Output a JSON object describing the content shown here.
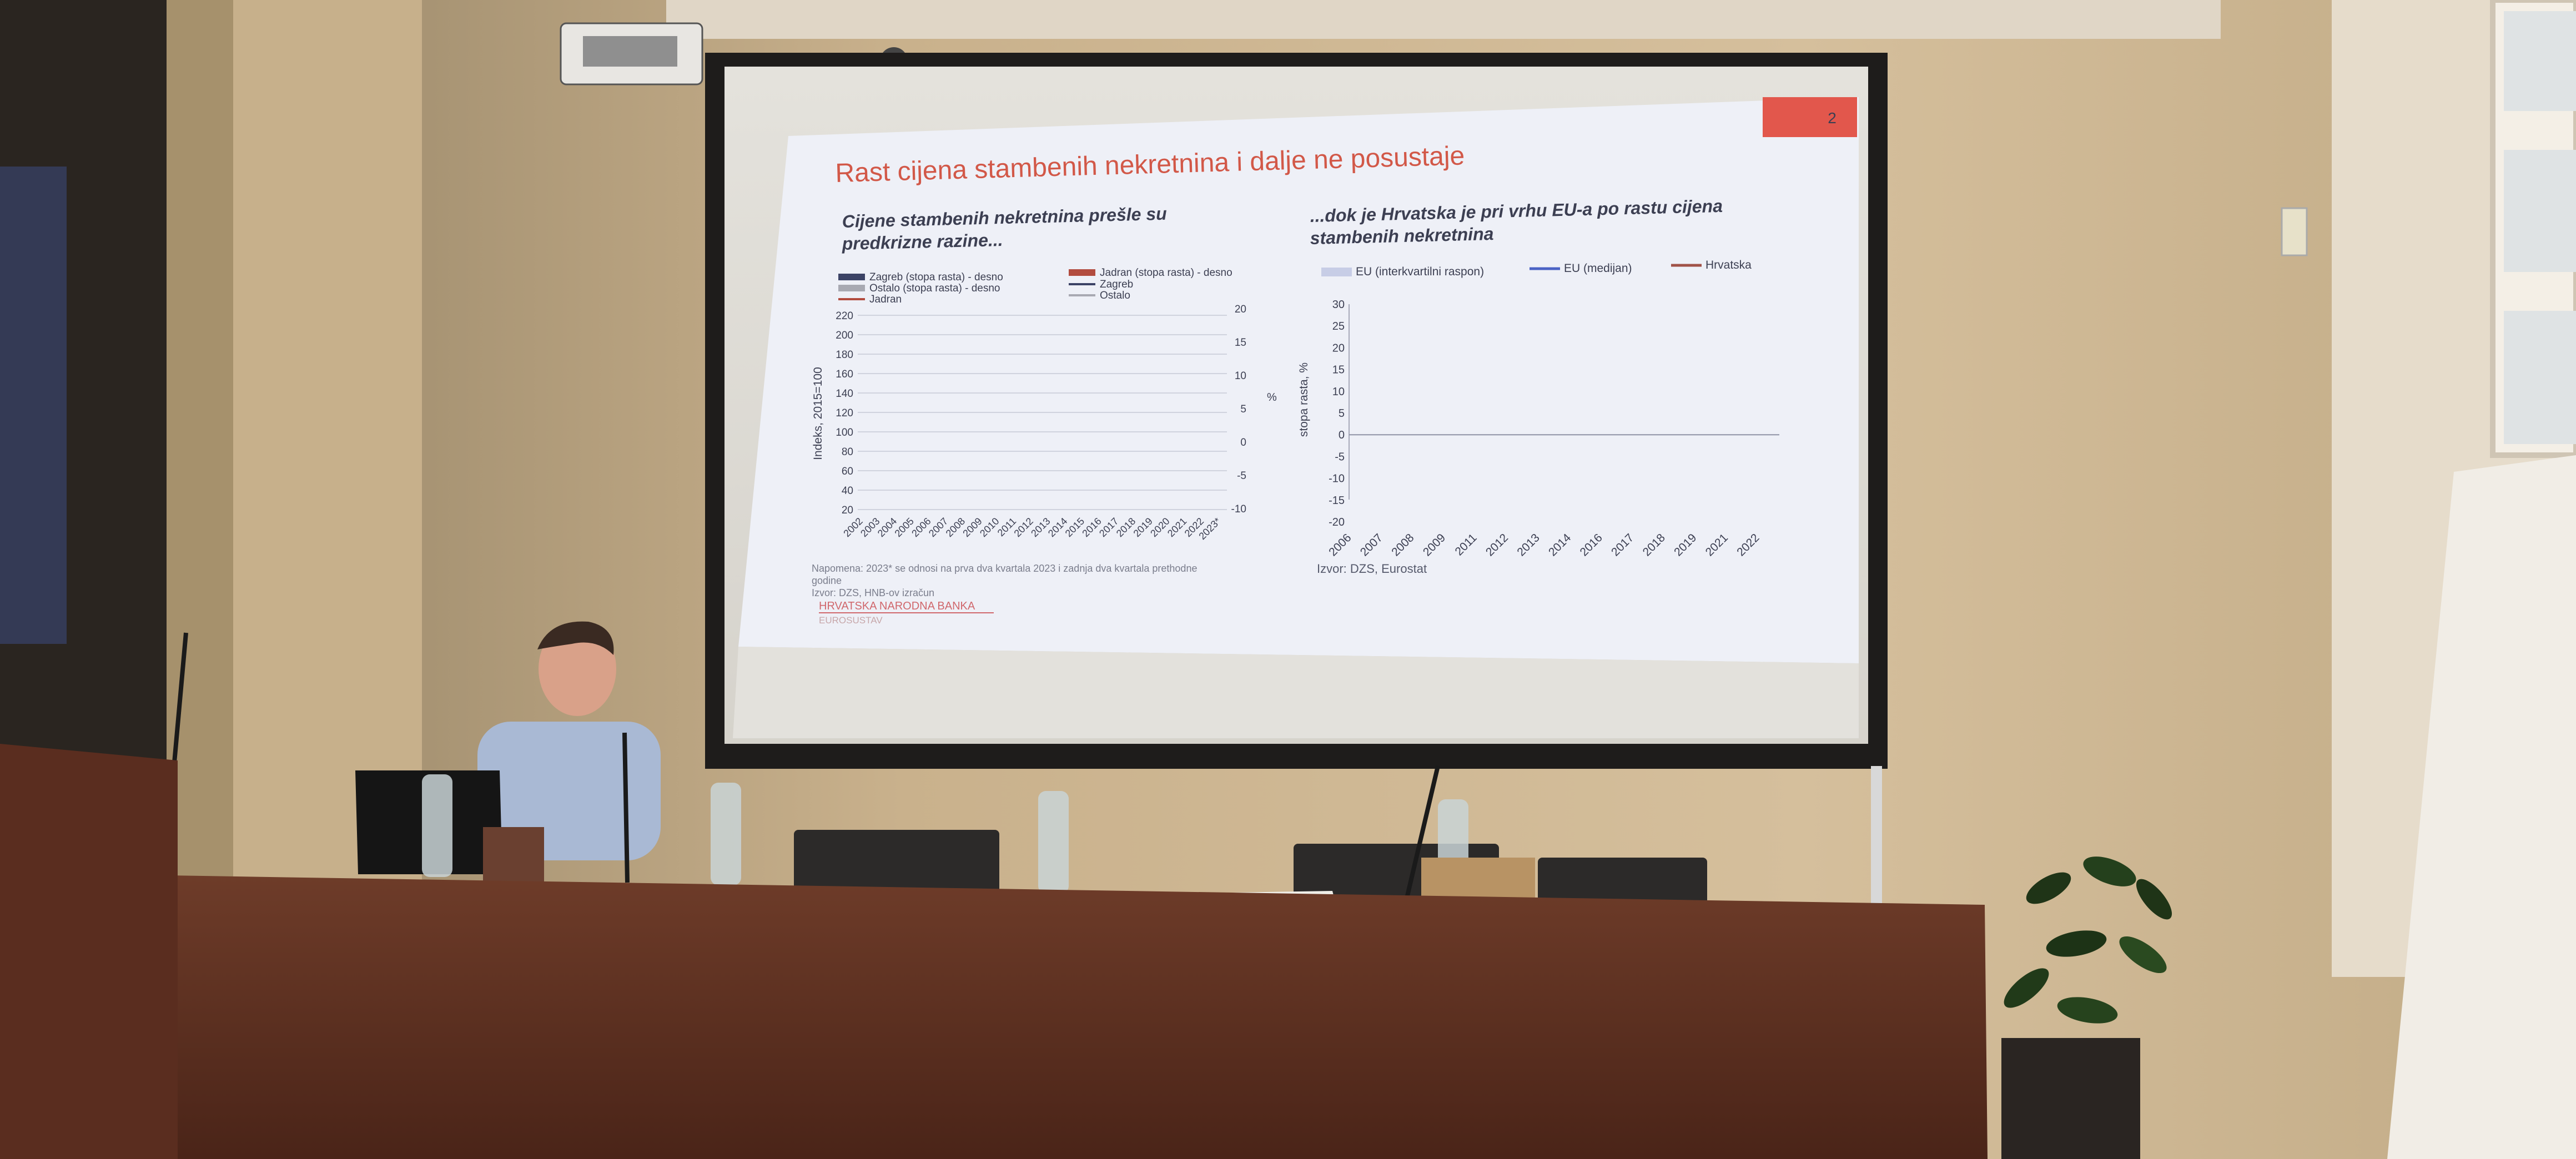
{
  "slide": {
    "page_number": "2",
    "title": "Rast cijena stambenih nekretnina i dalje ne posustaje",
    "left_subtitle_line1": "Cijene stambenih nekretnina prešle su",
    "left_subtitle_line2": "predkrizne razine...",
    "right_subtitle_line1": "...dok je Hrvatska je pri vrhu EU-a po rastu cijena",
    "right_subtitle_line2": "stambenih nekretnina",
    "note_line1": "Napomena: 2023* se odnosi na prva dva kvartala 2023 i zadnja dva kvartala prethodne",
    "note_line2": "godine",
    "note_line3": "Izvor: DZS, HNB-ov izračun",
    "hnb_logo": "HRVATSKA NARODNA BANKA",
    "eurosustav": "EUROSUSTAV",
    "right_source": "Izvor: DZS, Eurostat"
  },
  "left_chart": {
    "legend": [
      {
        "label": "Zagreb (stopa rasta) - desno",
        "kind": "bar",
        "color": "#3c4366"
      },
      {
        "label": "Jadran (stopa rasta) - desno",
        "kind": "bar",
        "color": "#b24c3f"
      },
      {
        "label": "Ostalo (stopa rasta) - desno",
        "kind": "bar",
        "color": "#a8a9b2"
      },
      {
        "label": "Zagreb",
        "kind": "line",
        "color": "#3c4366"
      },
      {
        "label": "Jadran",
        "kind": "line",
        "color": "#b24c3f"
      },
      {
        "label": "Ostalo",
        "kind": "line",
        "color": "#a8a9b2"
      }
    ],
    "ylabel": "Indeks, 2015=100",
    "y2label": "%",
    "y_ticks": [
      "220",
      "200",
      "180",
      "160",
      "140",
      "120",
      "100",
      "80",
      "60",
      "40",
      "20"
    ],
    "y2_ticks": [
      "20",
      "15",
      "10",
      "5",
      "0",
      "-5",
      "-10"
    ],
    "x_ticks": [
      "2002",
      "2003",
      "2004",
      "2005",
      "2006",
      "2007",
      "2008",
      "2009",
      "2010",
      "2011",
      "2012",
      "2013",
      "2014",
      "2015",
      "2016",
      "2017",
      "2018",
      "2019",
      "2020",
      "2021",
      "2022",
      "2023*"
    ]
  },
  "right_chart": {
    "legend": [
      {
        "label": "EU (interkvartilni raspon)",
        "color": "#c7cde6"
      },
      {
        "label": "EU (medijan)",
        "color": "#4a62c4"
      },
      {
        "label": "Hrvatska",
        "color": "#a05248"
      }
    ],
    "ylabel": "stopa rasta, %",
    "y_ticks": [
      "30",
      "25",
      "20",
      "15",
      "10",
      "5",
      "0",
      "-5",
      "-10",
      "-15",
      "-20"
    ],
    "x_ticks": [
      "2006",
      "2007",
      "2008",
      "2009",
      "2011",
      "2012",
      "2013",
      "2014",
      "2016",
      "2017",
      "2018",
      "2019",
      "2021",
      "2022"
    ]
  },
  "colors": {
    "wall": "#d8c3a0",
    "slide_bg": "#eef0f7",
    "accent_red": "#e2574c",
    "desk": "#5e3324"
  }
}
